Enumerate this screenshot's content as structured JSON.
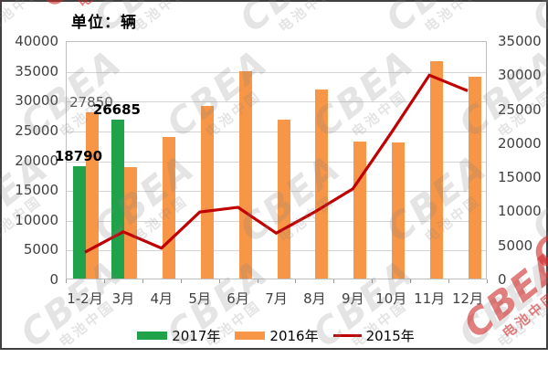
{
  "title": "单位：辆",
  "watermark": {
    "brand": "CBEA",
    "caption": "电池中国"
  },
  "colors": {
    "bar_2017": "#1FA24A",
    "bar_2016": "#F79646",
    "line_2015": "#C00000",
    "gridline": "#D4D4D4",
    "axis_text": "#3F3F3F",
    "border": "#404040"
  },
  "chart_data": {
    "type": "bar",
    "subtype": "grouped bars with overlaid line",
    "title": "单位：辆",
    "categories": [
      "1-2月",
      "3月",
      "4月",
      "5月",
      "6月",
      "7月",
      "8月",
      "9月",
      "10月",
      "11月",
      "12月"
    ],
    "series": [
      {
        "name": "2017年",
        "type": "bar",
        "axis": "left",
        "color": "#1FA24A",
        "values": [
          18790,
          26685,
          null,
          null,
          null,
          null,
          null,
          null,
          null,
          null,
          null
        ]
      },
      {
        "name": "2016年",
        "type": "bar",
        "axis": "left",
        "color": "#F79646",
        "values": [
          27850,
          18750,
          23800,
          28900,
          34800,
          26700,
          31800,
          23000,
          22900,
          36500,
          33800
        ]
      },
      {
        "name": "2015年",
        "type": "line",
        "axis": "right",
        "color": "#C00000",
        "values": [
          4000,
          7000,
          4600,
          9900,
          10600,
          6800,
          9900,
          13300,
          21500,
          30000,
          27700
        ]
      }
    ],
    "left_axis": {
      "min": 0,
      "max": 40000,
      "step": 5000
    },
    "right_axis": {
      "min": 0,
      "max": 35000,
      "step": 5000
    },
    "grid": true,
    "legend_position": "bottom",
    "legend": [
      "2017年",
      "2016年",
      "2015年"
    ],
    "data_labels": [
      {
        "category": "1-2月",
        "series": "2016年",
        "text": "27850",
        "bold": false,
        "color": "#595959"
      },
      {
        "category": "3月",
        "series": "2017年",
        "text": "26685",
        "bold": true,
        "color": "#000000"
      },
      {
        "category": "1-2月",
        "series": "2017年",
        "text": "18790",
        "bold": true,
        "color": "#000000"
      }
    ]
  }
}
